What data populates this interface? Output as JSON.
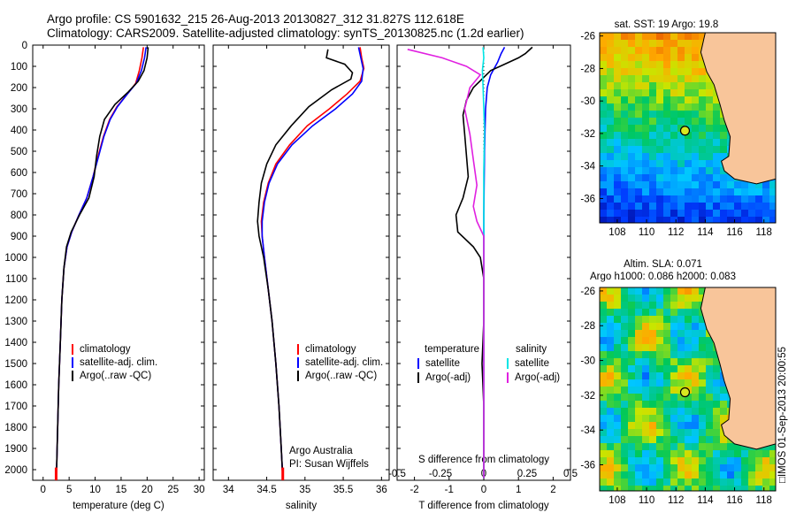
{
  "header": {
    "line1": "Argo profile: CS 5901632_215 26-Aug-2013 20130827_312 31.827S 112.618E",
    "line2": "Climatology: CARS2009. Satellite-adjusted climatology: synTS_20130825.nc (1.2d earlier)"
  },
  "imos_stamp": "□IMOS 01-Sep-2013 20:00:55",
  "colors": {
    "climatology": "#ff0000",
    "satellite": "#0000ff",
    "argo": "#000000",
    "salinity_satellite": "#00e5e5",
    "salinity_argo": "#e020e0",
    "land": "#f8c59a"
  },
  "chart_data": [
    {
      "type": "line",
      "panel": "temperature",
      "xlabel": "temperature (deg C)",
      "ylabel": "",
      "xlim": [
        -2,
        31
      ],
      "ylim": [
        2050,
        0
      ],
      "xticks": [
        0,
        5,
        10,
        15,
        20,
        25,
        30
      ],
      "xtick_labels": [
        "0",
        "5",
        "10",
        "15",
        "20",
        "25",
        "30"
      ],
      "yticks": [
        0,
        100,
        200,
        300,
        400,
        500,
        600,
        700,
        800,
        900,
        1000,
        1100,
        1200,
        1300,
        1400,
        1500,
        1600,
        1700,
        1800,
        1900,
        2000
      ],
      "ytick_labels": [
        "0",
        "100",
        "200",
        "300",
        "400",
        "500",
        "600",
        "700",
        "800",
        "900",
        "1000",
        "1100",
        "1200",
        "1300",
        "1400",
        "1500",
        "1600",
        "1700",
        "1800",
        "1900",
        "2000"
      ],
      "legend": [
        "climatology",
        "satellite-adj. clim.",
        "Argo(..raw -QC)"
      ],
      "legend_position": "lower-middle",
      "series": [
        {
          "name": "climatology",
          "points": [
            [
              19.3,
              10
            ],
            [
              19.0,
              60
            ],
            [
              18.5,
              120
            ],
            [
              17.8,
              180
            ],
            [
              16.2,
              230
            ],
            [
              14.2,
              290
            ],
            [
              12.8,
              350
            ],
            [
              11.6,
              430
            ],
            [
              10.6,
              520
            ],
            [
              9.6,
              620
            ],
            [
              8.4,
              720
            ],
            [
              6.9,
              800
            ],
            [
              5.5,
              880
            ],
            [
              4.6,
              950
            ],
            [
              4.0,
              1050
            ],
            [
              3.6,
              1200
            ],
            [
              3.3,
              1400
            ],
            [
              3.0,
              1600
            ],
            [
              2.8,
              1800
            ],
            [
              2.6,
              2000
            ],
            [
              2.5,
              2040
            ]
          ]
        },
        {
          "name": "satellite-adj. clim.",
          "points": [
            [
              19.8,
              10
            ],
            [
              19.5,
              60
            ],
            [
              18.9,
              120
            ],
            [
              17.9,
              180
            ],
            [
              16.2,
              230
            ],
            [
              14.3,
              290
            ],
            [
              12.9,
              350
            ],
            [
              11.7,
              430
            ],
            [
              10.7,
              520
            ],
            [
              9.6,
              620
            ],
            [
              8.4,
              720
            ],
            [
              6.9,
              800
            ],
            [
              5.5,
              880
            ],
            [
              4.6,
              950
            ],
            [
              4.0,
              1050
            ],
            [
              3.6,
              1200
            ],
            [
              3.3,
              1400
            ],
            [
              3.0,
              1600
            ],
            [
              2.8,
              1800
            ],
            [
              2.6,
              2000
            ],
            [
              2.5,
              2040
            ]
          ]
        },
        {
          "name": "Argo(..raw -QC)",
          "points": [
            [
              20.2,
              10
            ],
            [
              20.0,
              60
            ],
            [
              19.4,
              120
            ],
            [
              18.3,
              170
            ],
            [
              16.4,
              220
            ],
            [
              13.8,
              280
            ],
            [
              11.8,
              350
            ],
            [
              10.9,
              430
            ],
            [
              10.3,
              520
            ],
            [
              9.8,
              620
            ],
            [
              8.8,
              720
            ],
            [
              7.0,
              800
            ],
            [
              5.4,
              880
            ],
            [
              4.5,
              950
            ],
            [
              4.0,
              1050
            ],
            [
              3.6,
              1200
            ],
            [
              3.3,
              1400
            ],
            [
              3.0,
              1600
            ],
            [
              2.8,
              1800
            ],
            [
              2.6,
              2000
            ],
            [
              2.5,
              2040
            ]
          ]
        }
      ]
    },
    {
      "type": "line",
      "panel": "salinity",
      "xlabel": "salinity",
      "ylabel": "",
      "xlim": [
        33.8,
        36.1
      ],
      "ylim": [
        2050,
        0
      ],
      "xticks": [
        34,
        34.5,
        35,
        35.5,
        36
      ],
      "xtick_labels": [
        "34",
        "34.5",
        "35",
        "35.5",
        "36"
      ],
      "legend": [
        "climatology",
        "satellite-adj. clim.",
        "Argo(..raw -QC)"
      ],
      "legend_position": "lower-right",
      "annotation": [
        "Argo Australia",
        "PI: Susan Wijffels"
      ],
      "series": [
        {
          "name": "climatology",
          "points": [
            [
              35.72,
              10
            ],
            [
              35.74,
              60
            ],
            [
              35.77,
              110
            ],
            [
              35.72,
              170
            ],
            [
              35.55,
              230
            ],
            [
              35.32,
              300
            ],
            [
              35.03,
              380
            ],
            [
              34.8,
              470
            ],
            [
              34.62,
              560
            ],
            [
              34.52,
              650
            ],
            [
              34.46,
              740
            ],
            [
              34.43,
              830
            ],
            [
              34.44,
              900
            ],
            [
              34.47,
              1000
            ],
            [
              34.52,
              1150
            ],
            [
              34.57,
              1300
            ],
            [
              34.62,
              1500
            ],
            [
              34.66,
              1700
            ],
            [
              34.69,
              1900
            ],
            [
              34.71,
              2040
            ]
          ]
        },
        {
          "name": "satellite-adj. clim.",
          "points": [
            [
              35.7,
              10
            ],
            [
              35.73,
              60
            ],
            [
              35.76,
              110
            ],
            [
              35.74,
              170
            ],
            [
              35.62,
              230
            ],
            [
              35.4,
              300
            ],
            [
              35.1,
              380
            ],
            [
              34.83,
              470
            ],
            [
              34.64,
              560
            ],
            [
              34.53,
              650
            ],
            [
              34.47,
              740
            ],
            [
              34.44,
              830
            ],
            [
              34.44,
              900
            ],
            [
              34.47,
              1000
            ],
            [
              34.52,
              1150
            ],
            [
              34.57,
              1300
            ],
            [
              34.62,
              1500
            ],
            [
              34.66,
              1700
            ],
            [
              34.69,
              1900
            ],
            [
              34.71,
              2040
            ]
          ]
        },
        {
          "name": "Argo(..raw -QC)",
          "points": [
            [
              35.3,
              20
            ],
            [
              35.28,
              60
            ],
            [
              35.52,
              90
            ],
            [
              35.62,
              130
            ],
            [
              35.6,
              160
            ],
            [
              35.35,
              210
            ],
            [
              35.05,
              290
            ],
            [
              34.82,
              380
            ],
            [
              34.62,
              470
            ],
            [
              34.5,
              560
            ],
            [
              34.43,
              650
            ],
            [
              34.4,
              740
            ],
            [
              34.38,
              830
            ],
            [
              34.4,
              900
            ],
            [
              34.46,
              1000
            ],
            [
              34.52,
              1150
            ],
            [
              34.57,
              1300
            ],
            [
              34.62,
              1500
            ],
            [
              34.66,
              1700
            ],
            [
              34.69,
              1900
            ],
            [
              34.71,
              2040
            ]
          ]
        }
      ]
    },
    {
      "type": "line",
      "panel": "difference",
      "xlabel": "T difference from climatology",
      "title_bottom": "S difference from climatology",
      "xlim": [
        -2.5,
        2.5
      ],
      "ylim": [
        2050,
        0
      ],
      "xticks": [
        -2,
        -1,
        0,
        1,
        2
      ],
      "xtick_labels": [
        "-2",
        "-1",
        "0",
        "1",
        "2"
      ],
      "top_xticks": [
        -0.5,
        -0.25,
        0,
        0.25,
        0.5
      ],
      "top_xtick_labels": [
        "-0.5",
        "-0.25",
        "0",
        "0.25",
        "0.5"
      ],
      "legend_headers": [
        "temperature",
        "salinity"
      ],
      "legend": [
        "satellite",
        "Argo(-adj)",
        "satellite",
        "Argo(-adj)"
      ],
      "series": [
        {
          "name": "satellite",
          "group": "temperature",
          "points": [
            [
              0.6,
              10
            ],
            [
              0.5,
              40
            ],
            [
              0.4,
              80
            ],
            [
              0.2,
              140
            ],
            [
              0.1,
              200
            ],
            [
              0.05,
              300
            ],
            [
              0.02,
              500
            ],
            [
              0.0,
              800
            ],
            [
              0.0,
              1200
            ],
            [
              0.0,
              1600
            ],
            [
              0.0,
              2040
            ]
          ]
        },
        {
          "name": "Argo(-adj)",
          "group": "temperature",
          "points": [
            [
              1.4,
              10
            ],
            [
              1.2,
              40
            ],
            [
              1.0,
              60
            ],
            [
              0.6,
              90
            ],
            [
              0.2,
              120
            ],
            [
              -0.3,
              200
            ],
            [
              -0.5,
              260
            ],
            [
              -0.6,
              330
            ],
            [
              -0.55,
              420
            ],
            [
              -0.5,
              520
            ],
            [
              -0.45,
              620
            ],
            [
              -0.6,
              720
            ],
            [
              -0.8,
              800
            ],
            [
              -0.75,
              880
            ],
            [
              -0.3,
              950
            ],
            [
              -0.1,
              1000
            ],
            [
              0.0,
              1100
            ],
            [
              0.0,
              1300
            ],
            [
              -0.05,
              1500
            ],
            [
              0.0,
              1700
            ],
            [
              0.0,
              1900
            ],
            [
              0.0,
              2040
            ]
          ]
        },
        {
          "name": "satellite",
          "group": "salinity",
          "points": [
            [
              -0.02,
              10
            ],
            [
              0.0,
              60
            ],
            [
              -0.04,
              120
            ],
            [
              -0.02,
              200
            ],
            [
              0.0,
              300
            ],
            [
              0.02,
              400
            ],
            [
              0.0,
              600
            ],
            [
              0.0,
              900
            ],
            [
              0.0,
              1300
            ],
            [
              0.0,
              2040
            ]
          ]
        },
        {
          "name": "Argo(-adj)",
          "group": "salinity",
          "points": [
            [
              -2.2,
              20
            ],
            [
              -1.2,
              60
            ],
            [
              -0.5,
              100
            ],
            [
              -0.1,
              140
            ],
            [
              -0.4,
              200
            ],
            [
              -0.55,
              300
            ],
            [
              -0.4,
              420
            ],
            [
              -0.3,
              540
            ],
            [
              -0.2,
              660
            ],
            [
              -0.3,
              760
            ],
            [
              -0.2,
              830
            ],
            [
              0.0,
              900
            ],
            [
              0.0,
              1000
            ],
            [
              0.0,
              2040
            ]
          ]
        }
      ]
    }
  ],
  "maps": [
    {
      "title": "sat. SST: 19 Argo: 19.8",
      "xlim": [
        106.8,
        118.8
      ],
      "ylim": [
        -37.5,
        -25.8
      ],
      "xticks": [
        108,
        110,
        112,
        114,
        116,
        118
      ],
      "xtick_labels": [
        "108",
        "110",
        "112",
        "114",
        "116",
        "118"
      ],
      "yticks": [
        -26,
        -28,
        -30,
        -32,
        -34,
        -36
      ],
      "ytick_labels": [
        "-26",
        "-28",
        "-30",
        "-32",
        "-34",
        "-36"
      ],
      "marker": {
        "lon": 112.618,
        "lat": -31.827
      }
    },
    {
      "title": "Altim. SLA: 0.071",
      "subtitle": "Argo h1000: 0.086 h2000: 0.083",
      "xlim": [
        106.8,
        118.8
      ],
      "ylim": [
        -37.5,
        -25.8
      ],
      "xticks": [
        108,
        110,
        112,
        114,
        116,
        118
      ],
      "xtick_labels": [
        "108",
        "110",
        "112",
        "114",
        "116",
        "118"
      ],
      "yticks": [
        -26,
        -28,
        -30,
        -32,
        -34,
        -36
      ],
      "ytick_labels": [
        "-26",
        "-28",
        "-30",
        "-32",
        "-34",
        "-36"
      ],
      "marker": {
        "lon": 112.618,
        "lat": -31.827
      }
    }
  ]
}
